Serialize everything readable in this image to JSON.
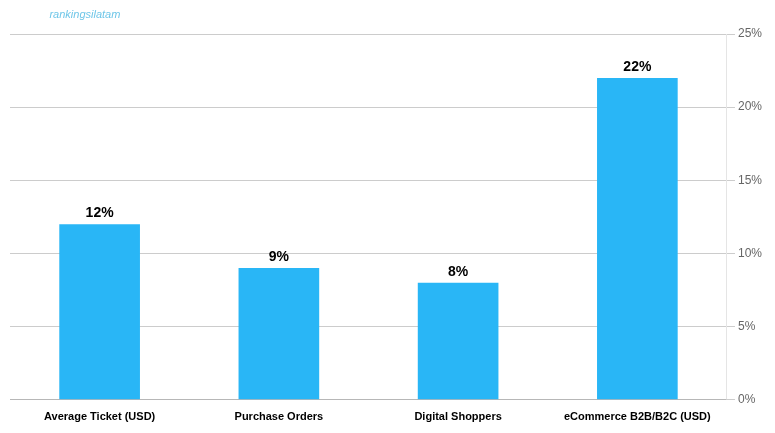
{
  "chart_data": {
    "type": "bar",
    "categories": [
      "Average Ticket (USD)",
      "Purchase Orders",
      "Digital Shoppers",
      "eCommerce B2B/B2C (USD)"
    ],
    "values": [
      12,
      9,
      8,
      22
    ],
    "value_labels": [
      "12%",
      "9%",
      "8%",
      "22%"
    ],
    "data_labels": true,
    "color": "#29B6F6",
    "ylim": [
      0,
      25
    ],
    "yticks": [
      {
        "value": 0,
        "label": "0%"
      },
      {
        "value": 5,
        "label": "5%"
      },
      {
        "value": 10,
        "label": "10%"
      },
      {
        "value": 15,
        "label": "15%"
      },
      {
        "value": 20,
        "label": "20%"
      },
      {
        "value": 25,
        "label": "25%"
      }
    ],
    "grid": true,
    "annotations": [
      {
        "text": "rankingsilatam",
        "color": "#6EC6E8"
      }
    ]
  }
}
